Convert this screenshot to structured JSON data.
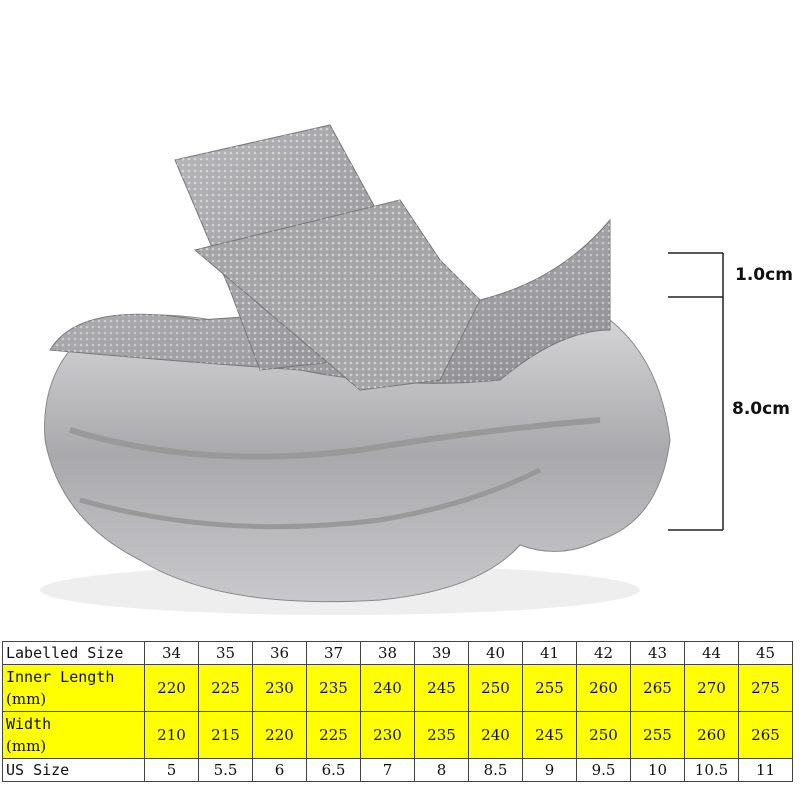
{
  "dimensions": {
    "upper_height": "1.0cm",
    "platform_height": "8.0cm"
  },
  "size_table": {
    "highlight_color": "#ffff00",
    "rows": [
      {
        "label": "Labelled Size",
        "values": [
          "34",
          "35",
          "36",
          "37",
          "38",
          "39",
          "40",
          "41",
          "42",
          "43",
          "44",
          "45"
        ]
      },
      {
        "label": "Inner Length",
        "unit": "(mm)",
        "values": [
          "220",
          "225",
          "230",
          "235",
          "240",
          "245",
          "250",
          "255",
          "260",
          "265",
          "270",
          "275"
        ]
      },
      {
        "label": "Width",
        "unit": "(mm)",
        "values": [
          "210",
          "215",
          "220",
          "225",
          "230",
          "235",
          "240",
          "245",
          "250",
          "255",
          "260",
          "265"
        ]
      },
      {
        "label": "US Size",
        "values": [
          "5",
          "5.5",
          "6",
          "6.5",
          "7",
          "8",
          "8.5",
          "9",
          "9.5",
          "10",
          "10.5",
          "11"
        ]
      }
    ]
  }
}
